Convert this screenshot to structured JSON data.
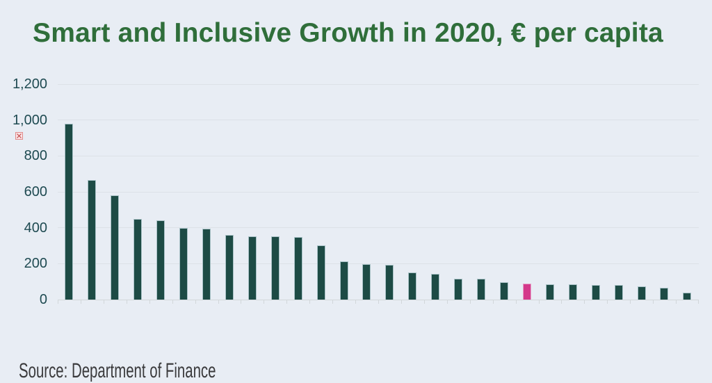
{
  "title": "Smart and Inclusive Growth in 2020, € per capita",
  "source": "Source: Department of Finance",
  "icons": {
    "broken_image": "broken-image-placeholder"
  },
  "colors": {
    "background": "#e8edf4",
    "title_green": "#2f6e3a",
    "bar_teal": "#1d4b45",
    "bar_highlight_pink": "#d4388a",
    "axis_label": "#1e4a51",
    "gridline": "#dce1e7",
    "axis_line": "#d2d7da",
    "source_text": "#3a3a3c"
  },
  "chart_data": {
    "type": "bar",
    "title": "Smart and Inclusive Growth in 2020, € per capita",
    "xlabel": "",
    "ylabel": "",
    "ylim": [
      0,
      1200
    ],
    "ytick_interval": 200,
    "ytick_labels": [
      "0",
      "200",
      "400",
      "600",
      "800",
      "1,000",
      "1,200"
    ],
    "grid": true,
    "legend": false,
    "x_tick_labels_visible": false,
    "bar_count": 28,
    "highlight_index": 20,
    "values": [
      980,
      667,
      580,
      448,
      442,
      400,
      396,
      361,
      354,
      353,
      350,
      302,
      212,
      198,
      193,
      150,
      143,
      116,
      115,
      98,
      90,
      85,
      84,
      83,
      82,
      74,
      67,
      40
    ]
  }
}
